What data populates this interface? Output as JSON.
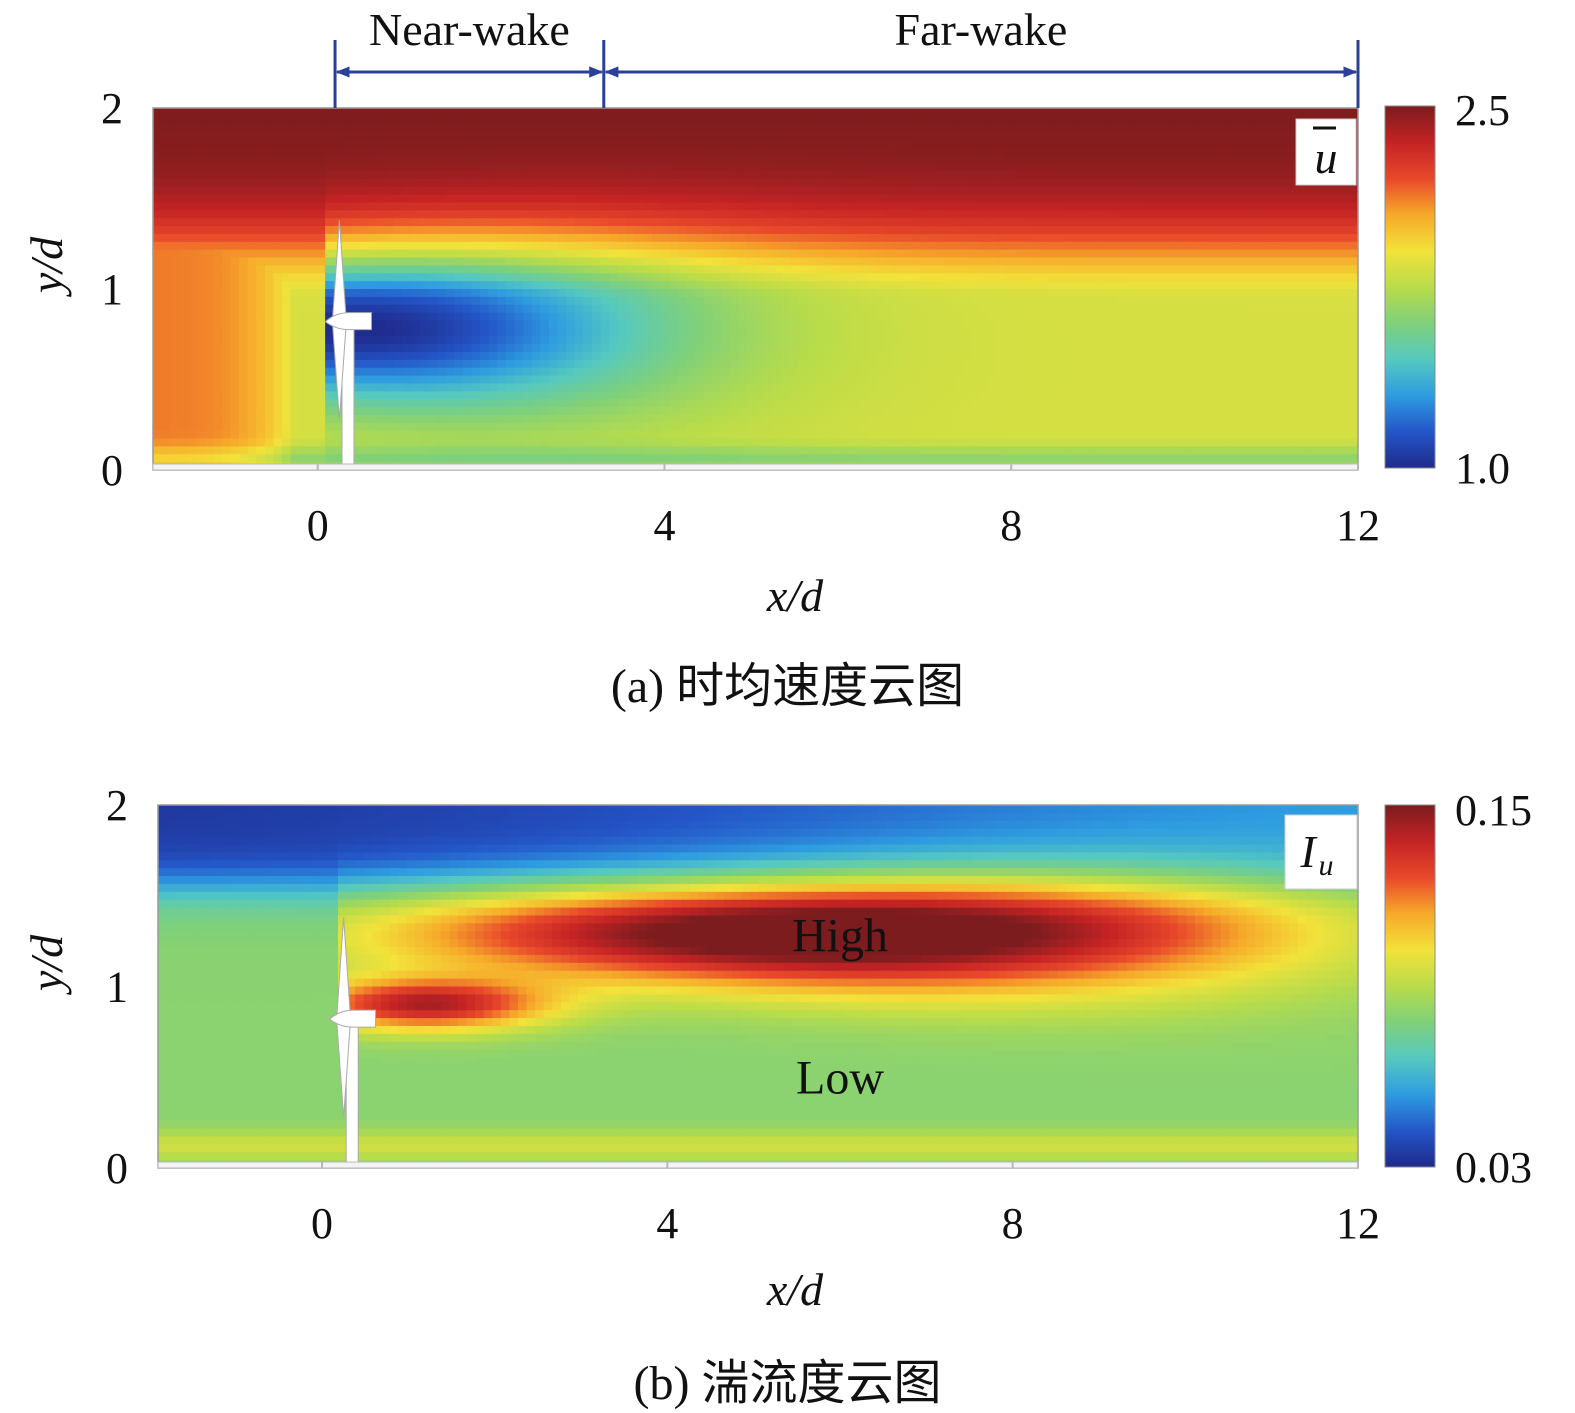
{
  "chart_data": [
    {
      "type": "heatmap",
      "id": "a",
      "caption": "(a) 时均速度云图",
      "xlabel": "x/d",
      "ylabel": "y/d",
      "xlim": [
        -1.9,
        12
      ],
      "ylim": [
        0,
        2
      ],
      "x_ticks": [
        0,
        4,
        8,
        12
      ],
      "x_tick_labels": [
        "0",
        "4",
        "8",
        "12"
      ],
      "y_ticks": [
        0,
        1,
        2
      ],
      "y_tick_labels": [
        "0",
        "1",
        "2"
      ],
      "quantity_label": "u",
      "quantity_overbar": true,
      "colorbar": {
        "min": 1.0,
        "max": 2.5,
        "min_label": "1.0",
        "max_label": "2.5"
      },
      "wake_zones": [
        {
          "label": "Near-wake",
          "x_start": 0.2,
          "x_end": 3.3
        },
        {
          "label": "Far-wake",
          "x_start": 3.3,
          "x_end": 12
        }
      ],
      "regions": []
    },
    {
      "type": "heatmap",
      "id": "b",
      "caption": "(b) 湍流度云图",
      "xlabel": "x/d",
      "ylabel": "y/d",
      "xlim": [
        -1.9,
        12
      ],
      "ylim": [
        0,
        2
      ],
      "x_ticks": [
        0,
        4,
        8,
        12
      ],
      "x_tick_labels": [
        "0",
        "4",
        "8",
        "12"
      ],
      "y_ticks": [
        0,
        1,
        2
      ],
      "y_tick_labels": [
        "0",
        "1",
        "2"
      ],
      "quantity_label": "I",
      "quantity_subscript": "u",
      "colorbar": {
        "min": 0.03,
        "max": 0.15,
        "min_label": "0.03",
        "max_label": "0.15"
      },
      "wake_zones": [],
      "regions": [
        {
          "label": "High",
          "x": 6.0,
          "y": 1.28
        },
        {
          "label": "Low",
          "x": 6.0,
          "y": 0.5
        }
      ]
    }
  ],
  "colors": {
    "colormap": [
      "#1f2a8c",
      "#2456c8",
      "#2e9ce0",
      "#55c9c0",
      "#7fd07a",
      "#b9dc4a",
      "#f2e23a",
      "#f6a92a",
      "#e8482a",
      "#c42324",
      "#7c1c1e"
    ],
    "arrow": "#2a3f9a",
    "axis": "#b8b8b8"
  }
}
